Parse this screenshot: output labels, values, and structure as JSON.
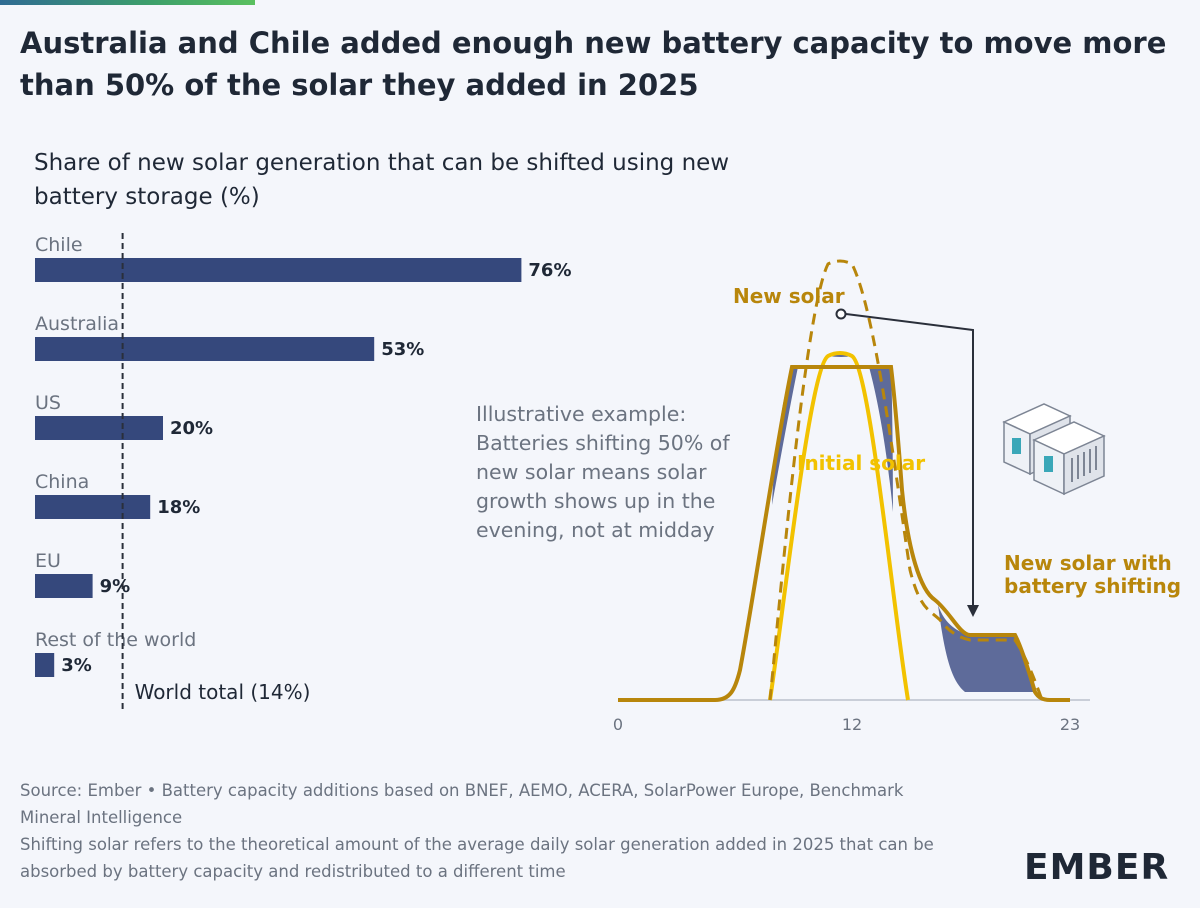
{
  "title": "Australia and Chile added enough new battery capacity to move more than 50% of the solar they added in 2025",
  "logo": {
    "text": "EMBER"
  },
  "chart_data": [
    {
      "type": "bar",
      "orientation": "horizontal",
      "title": "Share of new solar generation that can be shifted using new battery storage (%)",
      "categories": [
        "Chile",
        "Australia",
        "US",
        "China",
        "EU",
        "Rest of the world"
      ],
      "values": [
        76,
        53,
        20,
        18,
        9,
        3
      ],
      "value_labels": [
        "76%",
        "53%",
        "20%",
        "18%",
        "9%",
        "3%"
      ],
      "xlim": [
        0,
        100
      ],
      "reference_line": {
        "label": "World total (14%)",
        "value": 14
      },
      "colors": {
        "bar": "#35487c",
        "reference": "#2a2f3a"
      }
    },
    {
      "type": "area",
      "x_ticks": [
        "0",
        "12",
        "23"
      ],
      "xlim": [
        0,
        23
      ],
      "annotation": "Illustrative example: Batteries shifting 50% of new solar means solar growth shows up in the evening, not at midday",
      "series": [
        {
          "name": "New solar",
          "style": "dashed",
          "color": "#b8860b"
        },
        {
          "name": "Initial solar",
          "style": "solid",
          "color": "#f2c200"
        },
        {
          "name": "New solar with battery shifting",
          "style": "solid",
          "color": "#b8860b"
        }
      ],
      "shifted_area_color": "#5e6b9a"
    }
  ],
  "footer": {
    "source": "Source: Ember • Battery capacity additions based on BNEF, AEMO, ACERA, SolarPower Europe, Benchmark Mineral Intelligence",
    "note": "Shifting solar refers to the theoretical amount of the average daily solar generation added in 2025 that can be absorbed by battery capacity and redistributed to a different time"
  }
}
